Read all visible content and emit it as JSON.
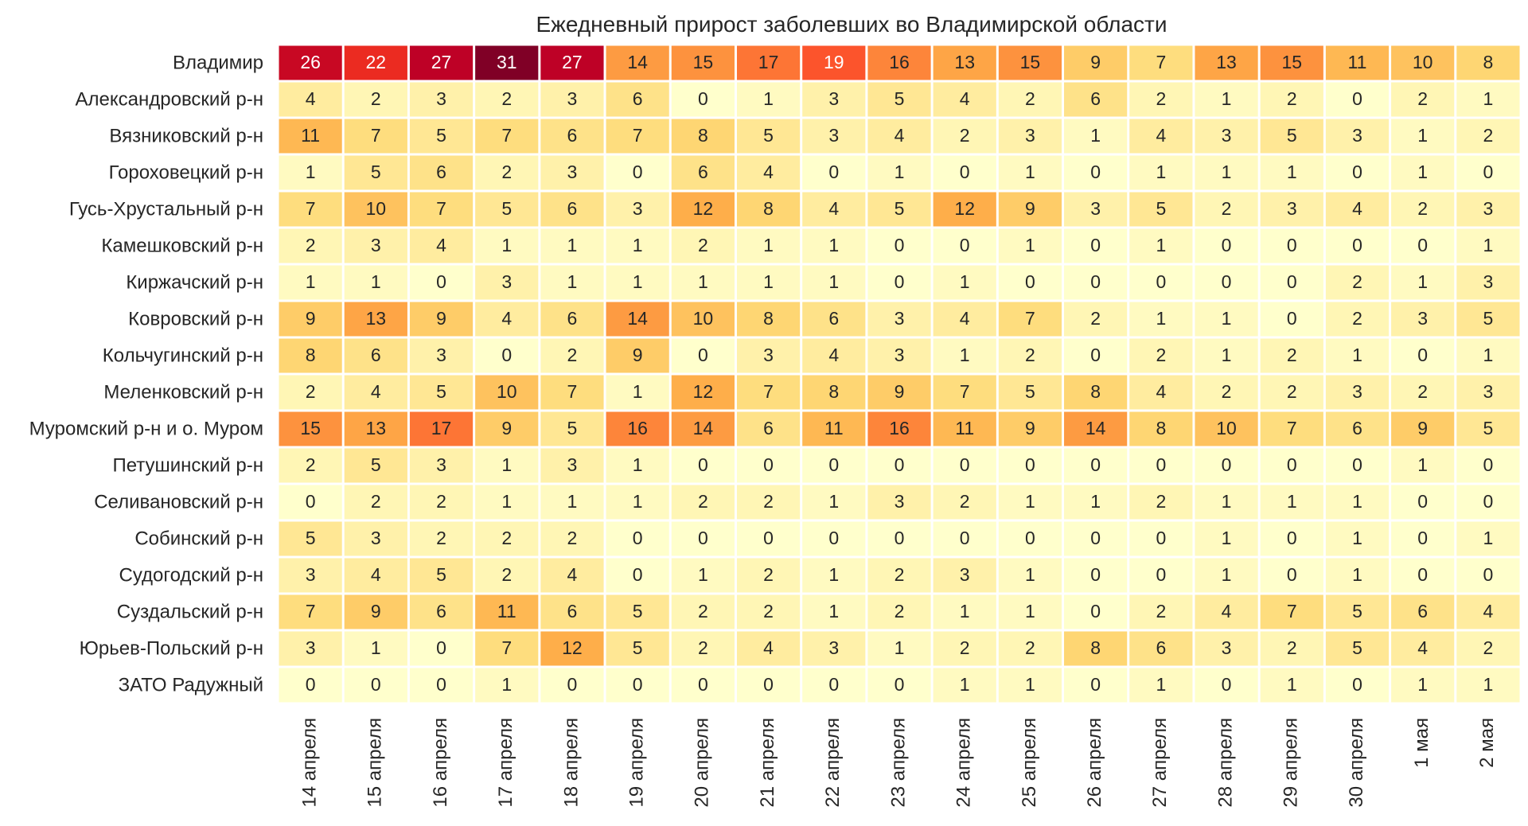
{
  "chart_data": {
    "type": "heatmap",
    "title": "Ежедневный прирост заболевших во Владимирской области",
    "xlabel": "",
    "ylabel": "",
    "colormap": "YlOrRd",
    "value_range": [
      0,
      31
    ],
    "color_scale": [
      "#ffffcc",
      "#ffeda0",
      "#fed976",
      "#feb24c",
      "#fd8d3c",
      "#fc4e2a",
      "#e31a1c",
      "#bd0026",
      "#800026"
    ],
    "grid": false,
    "cell_border_color": "#ffffff",
    "columns": [
      "14 апреля",
      "15 апреля",
      "16 апреля",
      "17 апреля",
      "18 апреля",
      "19 апреля",
      "20 апреля",
      "21 апреля",
      "22 апреля",
      "23 апреля",
      "24 апреля",
      "25 апреля",
      "26 апреля",
      "27 апреля",
      "28 апреля",
      "29 апреля",
      "30 апреля",
      "1 мая",
      "2 мая"
    ],
    "rows": [
      "Владимир",
      "Александровский р-н",
      "Вязниковский р-н",
      "Гороховецкий р-н",
      "Гусь-Хрустальный р-н",
      "Камешковский р-н",
      "Киржачский р-н",
      "Ковровский р-н",
      "Кольчугинский р-н",
      "Меленковский р-н",
      "Муромский р-н и о. Муром",
      "Петушинский р-н",
      "Селивановский р-н",
      "Собинский р-н",
      "Судогодский р-н",
      "Суздальский р-н",
      "Юрьев-Польский р-н",
      "ЗАТО Радужный"
    ],
    "values": [
      [
        26,
        22,
        27,
        31,
        27,
        14,
        15,
        17,
        19,
        16,
        13,
        15,
        9,
        7,
        13,
        15,
        11,
        10,
        8
      ],
      [
        4,
        2,
        3,
        2,
        3,
        6,
        0,
        1,
        3,
        5,
        4,
        2,
        6,
        2,
        1,
        2,
        0,
        2,
        1
      ],
      [
        11,
        7,
        5,
        7,
        6,
        7,
        8,
        5,
        3,
        4,
        2,
        3,
        1,
        4,
        3,
        5,
        3,
        1,
        2
      ],
      [
        1,
        5,
        6,
        2,
        3,
        0,
        6,
        4,
        0,
        1,
        0,
        1,
        0,
        1,
        1,
        1,
        0,
        1,
        0
      ],
      [
        7,
        10,
        7,
        5,
        6,
        3,
        12,
        8,
        4,
        5,
        12,
        9,
        3,
        5,
        2,
        3,
        4,
        2,
        3
      ],
      [
        2,
        3,
        4,
        1,
        1,
        1,
        2,
        1,
        1,
        0,
        0,
        1,
        0,
        1,
        0,
        0,
        0,
        0,
        1
      ],
      [
        1,
        1,
        0,
        3,
        1,
        1,
        1,
        1,
        1,
        0,
        1,
        0,
        0,
        0,
        0,
        0,
        2,
        1,
        3
      ],
      [
        9,
        13,
        9,
        4,
        6,
        14,
        10,
        8,
        6,
        3,
        4,
        7,
        2,
        1,
        1,
        0,
        2,
        3,
        5
      ],
      [
        8,
        6,
        3,
        0,
        2,
        9,
        0,
        3,
        4,
        3,
        1,
        2,
        0,
        2,
        1,
        2,
        1,
        0,
        1
      ],
      [
        2,
        4,
        5,
        10,
        7,
        1,
        12,
        7,
        8,
        9,
        7,
        5,
        8,
        4,
        2,
        2,
        3,
        2,
        3
      ],
      [
        15,
        13,
        17,
        9,
        5,
        16,
        14,
        6,
        11,
        16,
        11,
        9,
        14,
        8,
        10,
        7,
        6,
        9,
        5
      ],
      [
        2,
        5,
        3,
        1,
        3,
        1,
        0,
        0,
        0,
        0,
        0,
        0,
        0,
        0,
        0,
        0,
        0,
        1,
        0
      ],
      [
        0,
        2,
        2,
        1,
        1,
        1,
        2,
        2,
        1,
        3,
        2,
        1,
        1,
        2,
        1,
        1,
        1,
        0,
        0
      ],
      [
        5,
        3,
        2,
        2,
        2,
        0,
        0,
        0,
        0,
        0,
        0,
        0,
        0,
        0,
        1,
        0,
        1,
        0,
        1
      ],
      [
        3,
        4,
        5,
        2,
        4,
        0,
        1,
        2,
        1,
        2,
        3,
        1,
        0,
        0,
        1,
        0,
        1,
        0,
        0
      ],
      [
        7,
        9,
        6,
        11,
        6,
        5,
        2,
        2,
        1,
        2,
        1,
        1,
        0,
        2,
        4,
        7,
        5,
        6,
        4
      ],
      [
        3,
        1,
        0,
        7,
        12,
        5,
        2,
        4,
        3,
        1,
        2,
        2,
        8,
        6,
        3,
        2,
        5,
        4,
        2
      ],
      [
        0,
        0,
        0,
        1,
        0,
        0,
        0,
        0,
        0,
        0,
        1,
        1,
        0,
        1,
        0,
        1,
        0,
        1,
        1
      ]
    ]
  }
}
